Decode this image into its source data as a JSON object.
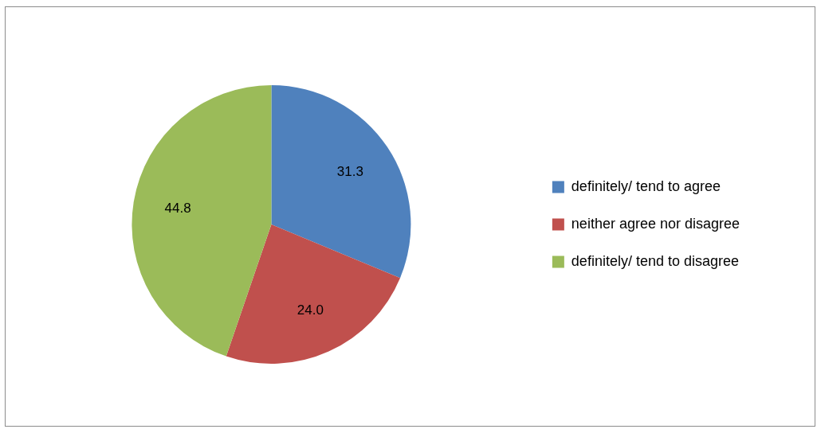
{
  "chart_data": {
    "type": "pie",
    "categories": [
      "definitely/ tend to agree",
      "neither agree nor disagree",
      "definitely/ tend to disagree"
    ],
    "values": [
      31.3,
      24.0,
      44.8
    ],
    "colors": [
      "#4f81bd",
      "#c0504d",
      "#9bbb59"
    ],
    "value_labels": [
      "31.3",
      "24.0",
      "44.8"
    ],
    "legend": "right"
  }
}
